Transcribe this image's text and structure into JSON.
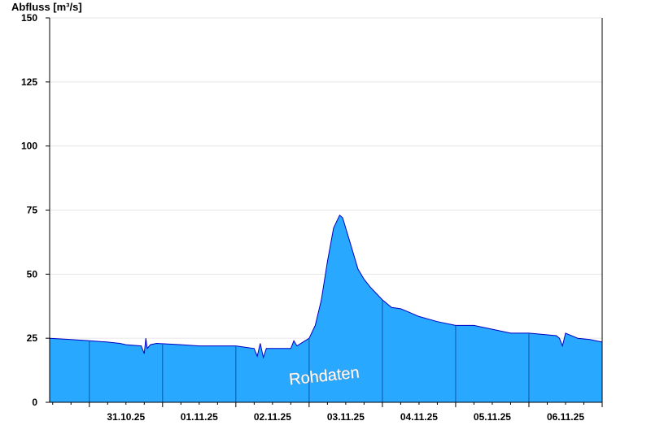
{
  "chart_data": {
    "type": "area",
    "ylabel": "Abfluss [m³/s]",
    "ylim": [
      0,
      150
    ],
    "yticks": [
      0,
      25,
      50,
      75,
      100,
      125,
      150
    ],
    "xlim": [
      "2025-10-30T11:00",
      "2025-11-07T00:00"
    ],
    "xtick_labels": [
      "31.10.25",
      "01.11.25",
      "02.11.25",
      "03.11.25",
      "04.11.25",
      "05.11.25",
      "06.11.25"
    ],
    "day_boundaries": [
      "2025-10-31T00:00",
      "2025-11-01T00:00",
      "2025-11-02T00:00",
      "2025-11-03T00:00",
      "2025-11-04T00:00",
      "2025-11-05T00:00",
      "2025-11-06T00:00"
    ],
    "grid": true,
    "series": [
      {
        "x": [
          "2025-10-30T11:00",
          "2025-10-30T18:00",
          "2025-10-31T00:00",
          "2025-10-31T06:00",
          "2025-10-31T10:00",
          "2025-10-31T12:00",
          "2025-10-31T17:00",
          "2025-10-31T18:00",
          "2025-10-31T18:30",
          "2025-10-31T19:00",
          "2025-10-31T20:00",
          "2025-10-31T22:00",
          "2025-11-01T06:00",
          "2025-11-01T12:00",
          "2025-11-02T00:00",
          "2025-11-02T03:00",
          "2025-11-02T06:00",
          "2025-11-02T07:00",
          "2025-11-02T08:00",
          "2025-11-02T09:00",
          "2025-11-02T10:00",
          "2025-11-02T12:00",
          "2025-11-02T18:00",
          "2025-11-02T19:00",
          "2025-11-02T20:00",
          "2025-11-03T00:00",
          "2025-11-03T02:00",
          "2025-11-03T04:00",
          "2025-11-03T06:00",
          "2025-11-03T08:00",
          "2025-11-03T10:00",
          "2025-11-03T11:00",
          "2025-11-03T12:00",
          "2025-11-03T14:00",
          "2025-11-03T16:00",
          "2025-11-03T18:00",
          "2025-11-03T20:00",
          "2025-11-04T00:00",
          "2025-11-04T03:00",
          "2025-11-04T06:00",
          "2025-11-04T09:00",
          "2025-11-04T12:00",
          "2025-11-04T18:00",
          "2025-11-05T00:00",
          "2025-11-05T06:00",
          "2025-11-05T12:00",
          "2025-11-05T18:00",
          "2025-11-06T00:00",
          "2025-11-06T09:00",
          "2025-11-06T10:00",
          "2025-11-06T11:00",
          "2025-11-06T12:00",
          "2025-11-06T16:00",
          "2025-11-06T20:00",
          "2025-11-07T00:00"
        ],
        "y": [
          25,
          24.5,
          24,
          23.5,
          23,
          22.5,
          22,
          19,
          25,
          21,
          22.5,
          23,
          22.5,
          22,
          22,
          21.5,
          21,
          18,
          23,
          17.5,
          21,
          21,
          21,
          24,
          22,
          25,
          30,
          40,
          55,
          68,
          73,
          72,
          68,
          60,
          52,
          48,
          45,
          40,
          37,
          36.5,
          35,
          33.5,
          31.5,
          30,
          30,
          28.5,
          27,
          27,
          26,
          25,
          22,
          27,
          25,
          24.5,
          23.5
        ]
      }
    ],
    "colors": {
      "fill": "#29a8ff",
      "line": "#0000c0",
      "grid": "#e6e6e6",
      "axis": "#000000",
      "day_marker": "#1a4f9c",
      "watermark": "#ffffff"
    },
    "watermark": "Rohdaten"
  }
}
